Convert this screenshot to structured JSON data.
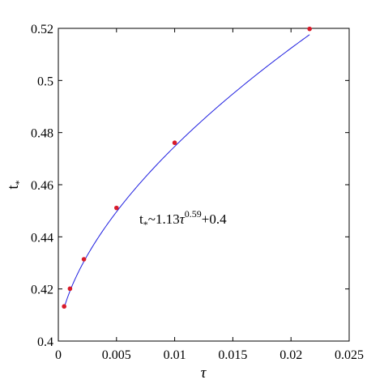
{
  "chart_data": {
    "type": "scatter",
    "title": "",
    "xlabel": "τ",
    "ylabel": "t",
    "ylabel_subscript": "*",
    "xlim": [
      0,
      0.025
    ],
    "ylim": [
      0.4,
      0.52
    ],
    "x_ticks": [
      0,
      0.005,
      0.01,
      0.015,
      0.02,
      0.025
    ],
    "x_tick_labels": [
      "0",
      "0.005",
      "0.01",
      "0.015",
      "0.02",
      "0.025"
    ],
    "y_ticks": [
      0.4,
      0.42,
      0.44,
      0.46,
      0.48,
      0.5,
      0.52
    ],
    "y_tick_labels": [
      "0.4",
      "0.42",
      "0.44",
      "0.46",
      "0.48",
      "0.5",
      "0.52"
    ],
    "grid": false,
    "legend": "none",
    "points": {
      "color": "#d81b2a",
      "x": [
        0.0005,
        0.001,
        0.0022,
        0.005,
        0.01,
        0.0216
      ],
      "y": [
        0.4133,
        0.4201,
        0.4314,
        0.4511,
        0.4761,
        0.5198
      ]
    },
    "fit_curve": {
      "color": "#1f1fe0",
      "coef": 1.13,
      "exponent": 0.59,
      "offset": 0.4,
      "x_start": 0.0005,
      "x_end": 0.0216
    },
    "annotation": {
      "t": "t",
      "sub": "*",
      "tilde": "~",
      "coef": "1.13",
      "tau": "τ",
      "exp": "0.59",
      "offset": "+0.4"
    }
  }
}
